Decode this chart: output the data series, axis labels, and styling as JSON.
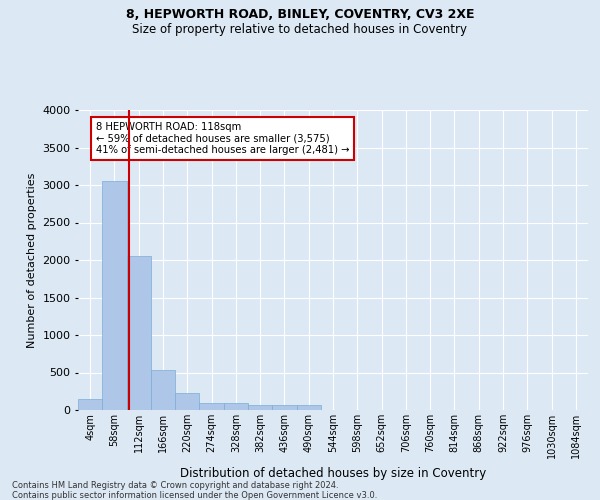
{
  "title1": "8, HEPWORTH ROAD, BINLEY, COVENTRY, CV3 2XE",
  "title2": "Size of property relative to detached houses in Coventry",
  "xlabel": "Distribution of detached houses by size in Coventry",
  "ylabel": "Number of detached properties",
  "bin_labels": [
    "4sqm",
    "58sqm",
    "112sqm",
    "166sqm",
    "220sqm",
    "274sqm",
    "328sqm",
    "382sqm",
    "436sqm",
    "490sqm",
    "544sqm",
    "598sqm",
    "652sqm",
    "706sqm",
    "760sqm",
    "814sqm",
    "868sqm",
    "922sqm",
    "976sqm",
    "1030sqm",
    "1084sqm"
  ],
  "bar_values": [
    150,
    3050,
    2050,
    530,
    230,
    100,
    95,
    65,
    65,
    65,
    0,
    0,
    0,
    0,
    0,
    0,
    0,
    0,
    0,
    0,
    0
  ],
  "bar_color": "#aec6e8",
  "bar_edge_color": "#7aadd4",
  "background_color": "#dce9f5",
  "grid_color": "#ffffff",
  "property_line_color": "#cc0000",
  "annotation_text": "8 HEPWORTH ROAD: 118sqm\n← 59% of detached houses are smaller (3,575)\n41% of semi-detached houses are larger (2,481) →",
  "annotation_box_color": "#ffffff",
  "annotation_box_edge": "#cc0000",
  "ylim": [
    0,
    4000
  ],
  "yticks": [
    0,
    500,
    1000,
    1500,
    2000,
    2500,
    3000,
    3500,
    4000
  ],
  "footnote1": "Contains HM Land Registry data © Crown copyright and database right 2024.",
  "footnote2": "Contains public sector information licensed under the Open Government Licence v3.0."
}
